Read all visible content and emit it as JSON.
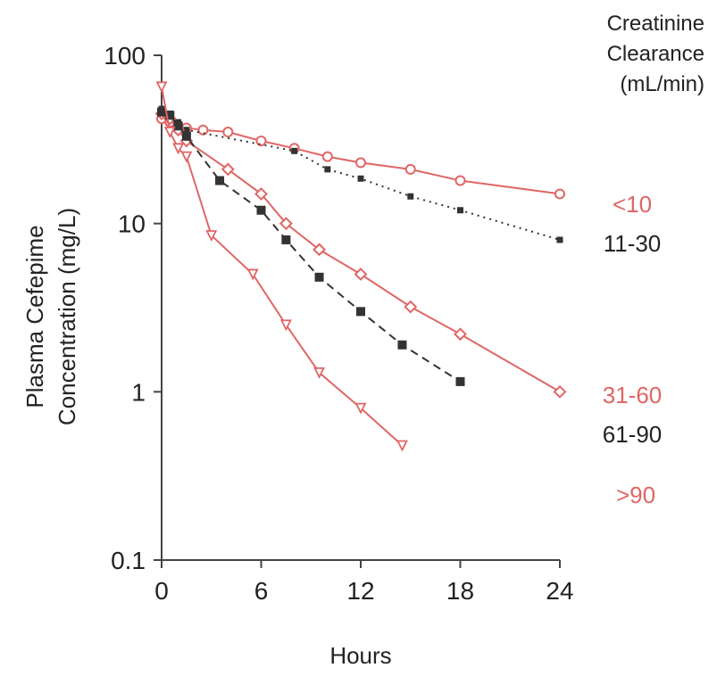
{
  "chart_data": {
    "type": "line",
    "title": "",
    "xlabel": "Hours",
    "ylabel_line1": "Plasma Cefepime",
    "ylabel_line2": "Concentration (mg/L)",
    "xlim": [
      0,
      24
    ],
    "ylim": [
      0.1,
      100
    ],
    "yscale": "log",
    "xticks": [
      0,
      6,
      12,
      18,
      24
    ],
    "yticks": [
      0.1,
      1,
      10,
      100
    ],
    "xtick_labels": [
      "0",
      "6",
      "12",
      "18",
      "24"
    ],
    "ytick_labels": [
      "0.1",
      "1",
      "10",
      "100"
    ],
    "grid": false,
    "legend_title": [
      "Creatinine",
      "Clearance",
      "(mL/min)"
    ],
    "legend_placement": "right",
    "series": [
      {
        "name": "<10",
        "color": "#e06666",
        "line_style": "solid",
        "marker": "open-circle",
        "x": [
          0,
          0.5,
          1,
          1.5,
          2.5,
          4,
          6,
          8,
          10,
          12,
          15,
          18,
          24
        ],
        "y": [
          42,
          40,
          38,
          37,
          36,
          35,
          31,
          28,
          25,
          23,
          21,
          18,
          15
        ]
      },
      {
        "name": "11-30",
        "color": "#333333",
        "line_style": "dotted",
        "marker": "filled-square",
        "x": [
          0,
          0.5,
          1,
          1.5,
          8,
          10,
          12,
          15,
          18,
          24
        ],
        "y": [
          48,
          45,
          40,
          36,
          27,
          21,
          18.5,
          14.5,
          12,
          8
        ]
      },
      {
        "name": "31-60",
        "color": "#e06666",
        "line_style": "solid",
        "marker": "open-diamond",
        "x": [
          0,
          0.5,
          1,
          1.5,
          4,
          6,
          7.5,
          9.5,
          12,
          15,
          18,
          24
        ],
        "y": [
          45,
          42,
          36,
          31,
          21,
          15,
          10,
          7,
          5,
          3.2,
          2.2,
          1
        ]
      },
      {
        "name": "61-90",
        "color": "#333333",
        "line_style": "dashed",
        "marker": "filled-square",
        "x": [
          0,
          0.5,
          1,
          1.5,
          3.5,
          6,
          7.5,
          9.5,
          12,
          14.5,
          18
        ],
        "y": [
          46,
          44,
          38,
          33,
          18,
          12,
          8,
          4.8,
          3,
          1.9,
          1.15
        ]
      },
      {
        "name": ">90",
        "color": "#e06666",
        "line_style": "solid",
        "marker": "open-triangle-down",
        "x": [
          0,
          0.5,
          1,
          1.5,
          3,
          5.5,
          7.5,
          9.5,
          12,
          14.5
        ],
        "y": [
          65,
          35,
          28,
          25,
          8.5,
          5,
          2.5,
          1.3,
          0.8,
          0.48
        ]
      }
    ]
  }
}
